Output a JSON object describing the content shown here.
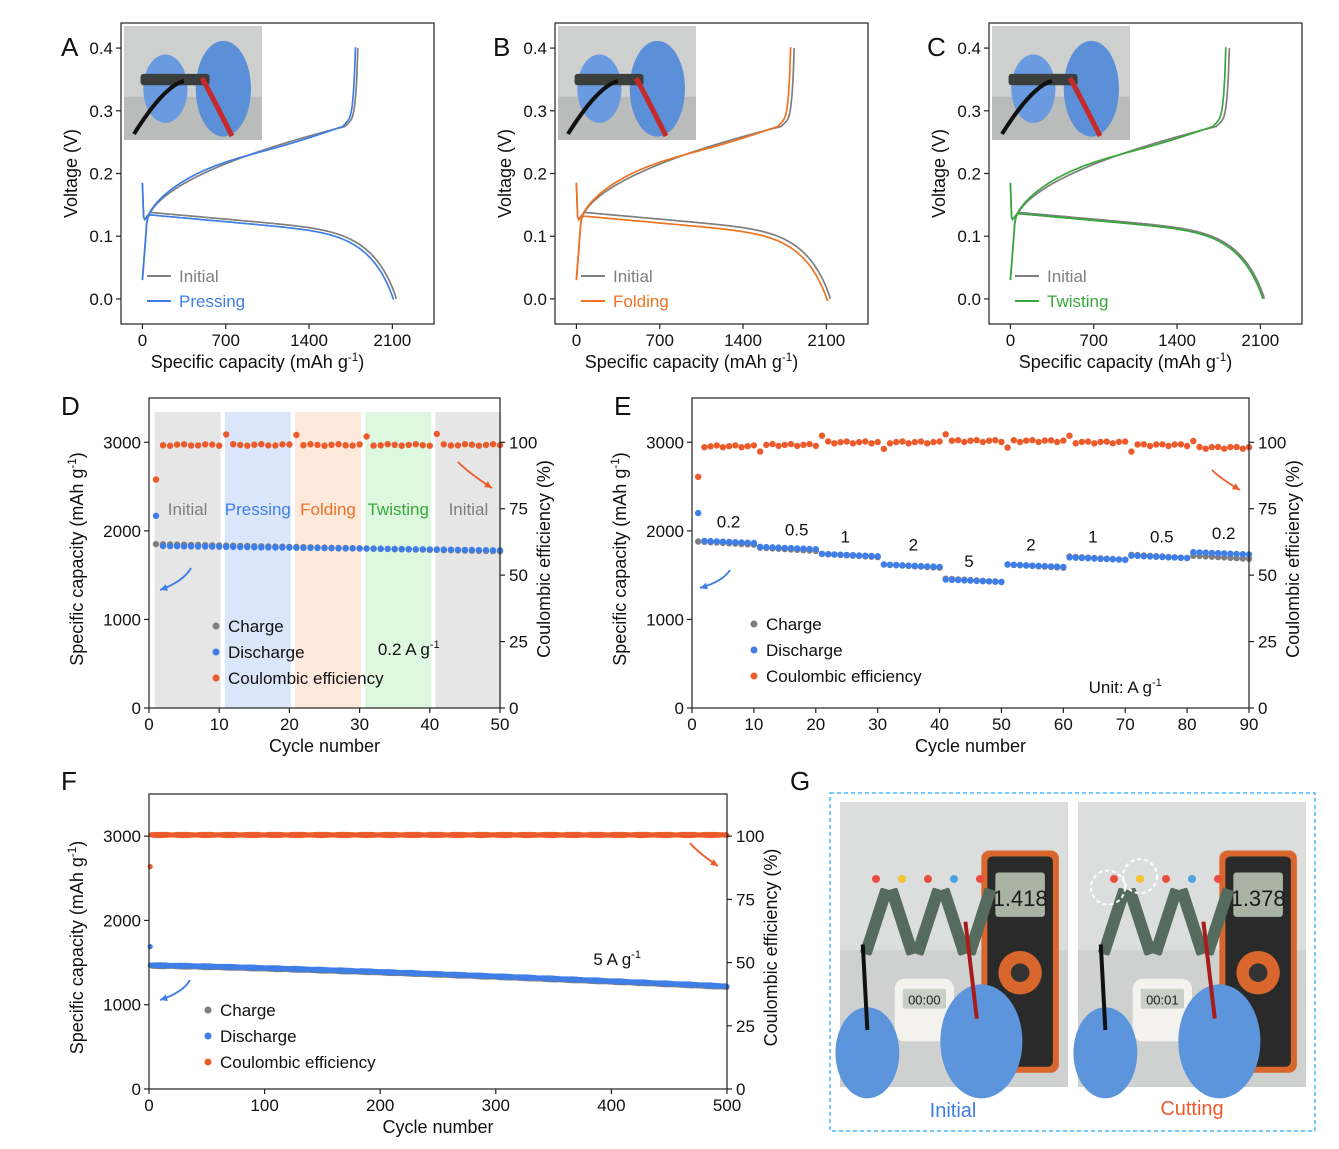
{
  "colors": {
    "gray": "#7f7f7f",
    "blue": "#3f7ee6",
    "orange": "#ec5b2c",
    "orange_line": "#ef7322",
    "green": "#38a83c",
    "band_gray": "#e6e6e6",
    "band_blue": "#dce6fa",
    "band_orange": "#fde8dc",
    "band_green": "#def7df"
  },
  "panels": {
    "A": {
      "letter": "A"
    },
    "B": {
      "letter": "B"
    },
    "C": {
      "letter": "C"
    },
    "D": {
      "letter": "D"
    },
    "E": {
      "letter": "E"
    },
    "F": {
      "letter": "F"
    },
    "G": {
      "letter": "G"
    }
  },
  "chart_data": [
    {
      "id": "A",
      "type": "line",
      "xlabel": "Specific capacity (mAh g",
      "xlabel_sup": "-1",
      "xlabel_end": ")",
      "ylabel": "Voltage (V)",
      "xlim": [
        -180,
        2450
      ],
      "ylim": [
        -0.04,
        0.44
      ],
      "xticks": [
        0,
        700,
        1400,
        2100
      ],
      "xtick_labels": [
        "0",
        "700",
        "1400",
        "2100"
      ],
      "yticks": [
        0.0,
        0.1,
        0.2,
        0.3,
        0.4
      ],
      "ytick_labels": [
        "0.0",
        "0.1",
        "0.2",
        "0.3",
        "0.4"
      ],
      "legend": [
        "Initial",
        "Pressing"
      ],
      "legend_position": "bottom-left",
      "series": [
        {
          "name": "Initial",
          "color_key": "gray",
          "end_capacity": 2130,
          "charge_end": 1810,
          "dis_level": 0.138
        },
        {
          "name": "Pressing",
          "color_key": "blue",
          "end_capacity": 2110,
          "charge_end": 1790,
          "dis_level": 0.134
        }
      ]
    },
    {
      "id": "B",
      "type": "line",
      "xlabel": "Specific capacity (mAh g",
      "xlabel_sup": "-1",
      "xlabel_end": ")",
      "ylabel": "Voltage (V)",
      "xlim": [
        -180,
        2450
      ],
      "ylim": [
        -0.04,
        0.44
      ],
      "xticks": [
        0,
        700,
        1400,
        2100
      ],
      "xtick_labels": [
        "0",
        "700",
        "1400",
        "2100"
      ],
      "yticks": [
        0.0,
        0.1,
        0.2,
        0.3,
        0.4
      ],
      "ytick_labels": [
        "0.0",
        "0.1",
        "0.2",
        "0.3",
        "0.4"
      ],
      "legend": [
        "Initial",
        "Folding"
      ],
      "legend_position": "bottom-left",
      "series": [
        {
          "name": "Initial",
          "color_key": "gray",
          "end_capacity": 2130,
          "charge_end": 1830,
          "dis_level": 0.138
        },
        {
          "name": "Folding",
          "color_key": "orange_line",
          "end_capacity": 2110,
          "charge_end": 1800,
          "dis_level": 0.132
        }
      ]
    },
    {
      "id": "C",
      "type": "line",
      "xlabel": "Specific capacity (mAh g",
      "xlabel_sup": "-1",
      "xlabel_end": ")",
      "ylabel": "Voltage (V)",
      "xlim": [
        -180,
        2450
      ],
      "ylim": [
        -0.04,
        0.44
      ],
      "xticks": [
        0,
        700,
        1400,
        2100
      ],
      "xtick_labels": [
        "0",
        "700",
        "1400",
        "2100"
      ],
      "yticks": [
        0.0,
        0.1,
        0.2,
        0.3,
        0.4
      ],
      "ytick_labels": [
        "0.0",
        "0.1",
        "0.2",
        "0.3",
        "0.4"
      ],
      "legend": [
        "Initial",
        "Twisting"
      ],
      "legend_position": "bottom-left",
      "series": [
        {
          "name": "Initial",
          "color_key": "gray",
          "end_capacity": 2130,
          "charge_end": 1840,
          "dis_level": 0.138
        },
        {
          "name": "Twisting",
          "color_key": "green",
          "end_capacity": 2120,
          "charge_end": 1810,
          "dis_level": 0.136
        }
      ]
    },
    {
      "id": "D",
      "type": "scatter",
      "xlabel": "Cycle number",
      "ylabel": "Specific capacity (mAh g",
      "ylabel_sup": "-1",
      "ylabel_end": ")",
      "y2label": "Coulombic efficiency (%)",
      "xlim": [
        0,
        50
      ],
      "ylim": [
        0,
        3500
      ],
      "y2lim": [
        0,
        116.67
      ],
      "xticks": [
        0,
        10,
        20,
        30,
        40,
        50
      ],
      "xtick_labels": [
        "0",
        "10",
        "20",
        "30",
        "40",
        "50"
      ],
      "yticks": [
        0,
        1000,
        2000,
        3000
      ],
      "ytick_labels": [
        "0",
        "1000",
        "2000",
        "3000"
      ],
      "y2ticks": [
        0,
        25,
        50,
        75,
        100
      ],
      "y2tick_labels": [
        "0",
        "25",
        "50",
        "75",
        "100"
      ],
      "regions": [
        {
          "label": "Initial",
          "x": [
            1,
            10
          ],
          "color_key": "band_gray",
          "text_key": "gray"
        },
        {
          "label": "Pressing",
          "x": [
            11,
            20
          ],
          "color_key": "band_blue",
          "text_key": "blue"
        },
        {
          "label": "Folding",
          "x": [
            21,
            30
          ],
          "color_key": "band_orange",
          "text_key": "orange_line"
        },
        {
          "label": "Twisting",
          "x": [
            31,
            40
          ],
          "color_key": "band_green",
          "text_key": "green"
        },
        {
          "label": "Initial",
          "x": [
            41,
            50
          ],
          "color_key": "band_gray",
          "text_key": "gray"
        }
      ],
      "annotation": {
        "text": "0.2 A g",
        "sup": "-1",
        "x": 37,
        "y": 600
      },
      "legend": [
        "Charge",
        "Discharge",
        "Coulombic efficiency"
      ],
      "series": [
        {
          "name": "Charge",
          "color_key": "gray",
          "axis": "left",
          "x_start": 1,
          "x_end": 50,
          "start": 1850,
          "end": 1770,
          "first": 1850
        },
        {
          "name": "Discharge",
          "color_key": "blue",
          "axis": "left",
          "x_start": 1,
          "x_end": 50,
          "start": 1830,
          "end": 1780,
          "first": 2170
        },
        {
          "name": "Coulombic efficiency",
          "color_key": "orange",
          "axis": "right",
          "x_start": 1,
          "x_end": 50,
          "start": 99,
          "end": 99,
          "first": 86,
          "spikes": {
            "11": 103,
            "21": 103,
            "31": 102,
            "41": 103
          }
        }
      ]
    },
    {
      "id": "E",
      "type": "scatter",
      "xlabel": "Cycle number",
      "ylabel": "Specific capacity (mAh g",
      "ylabel_sup": "-1",
      "ylabel_end": ")",
      "y2label": "Coulombic efficiency (%)",
      "xlim": [
        0,
        90
      ],
      "ylim": [
        0,
        3500
      ],
      "y2lim": [
        0,
        116.67
      ],
      "xticks": [
        0,
        10,
        20,
        30,
        40,
        50,
        60,
        70,
        80,
        90
      ],
      "xtick_labels": [
        "0",
        "10",
        "20",
        "30",
        "40",
        "50",
        "60",
        "70",
        "80",
        "90"
      ],
      "yticks": [
        0,
        1000,
        2000,
        3000
      ],
      "ytick_labels": [
        "0",
        "1000",
        "2000",
        "3000"
      ],
      "y2ticks": [
        0,
        25,
        50,
        75,
        100
      ],
      "y2tick_labels": [
        "0",
        "25",
        "50",
        "75",
        "100"
      ],
      "rate_steps": [
        {
          "rate": "0.2",
          "x": [
            1,
            10
          ],
          "charge": 1880,
          "discharge": 1890,
          "ce": 98.5,
          "label_x": 4,
          "label_y": 2040
        },
        {
          "rate": "0.5",
          "x": [
            11,
            20
          ],
          "charge": 1810,
          "discharge": 1820,
          "ce": 99,
          "label_x": 15,
          "label_y": 1950
        },
        {
          "rate": "1",
          "x": [
            21,
            30
          ],
          "charge": 1740,
          "discharge": 1740,
          "ce": 100,
          "label_x": 24,
          "label_y": 1870
        },
        {
          "rate": "2",
          "x": [
            31,
            40
          ],
          "charge": 1620,
          "discharge": 1620,
          "ce": 100,
          "label_x": 35,
          "label_y": 1780
        },
        {
          "rate": "5",
          "x": [
            41,
            50
          ],
          "charge": 1460,
          "discharge": 1450,
          "ce": 100.5,
          "label_x": 44,
          "label_y": 1590
        },
        {
          "rate": "2",
          "x": [
            51,
            60
          ],
          "charge": 1620,
          "discharge": 1620,
          "ce": 100.5,
          "label_x": 54,
          "label_y": 1780
        },
        {
          "rate": "1",
          "x": [
            61,
            70
          ],
          "charge": 1710,
          "discharge": 1700,
          "ce": 100,
          "label_x": 64,
          "label_y": 1870
        },
        {
          "rate": "0.5",
          "x": [
            71,
            80
          ],
          "charge": 1730,
          "discharge": 1720,
          "ce": 99,
          "label_x": 74,
          "label_y": 1870
        },
        {
          "rate": "0.2",
          "x": [
            81,
            90
          ],
          "charge": 1720,
          "discharge": 1760,
          "ce": 98,
          "label_x": 84,
          "label_y": 1910
        }
      ],
      "first_points": {
        "charge": 1880,
        "discharge": 2200,
        "ce": 87
      },
      "annotation": {
        "text": "Unit: A g",
        "sup": "-1",
        "x": 70,
        "y": 170
      },
      "legend": [
        "Charge",
        "Discharge",
        "Coulombic efficiency"
      ]
    },
    {
      "id": "F",
      "type": "scatter",
      "xlabel": "Cycle number",
      "ylabel": "Specific capacity (mAh g",
      "ylabel_sup": "-1",
      "ylabel_end": ")",
      "y2label": "Coulombic efficiency (%)",
      "xlim": [
        0,
        500
      ],
      "ylim": [
        0,
        3500
      ],
      "y2lim": [
        0,
        116.67
      ],
      "xticks": [
        0,
        100,
        200,
        300,
        400,
        500
      ],
      "xtick_labels": [
        "0",
        "100",
        "200",
        "300",
        "400",
        "500"
      ],
      "yticks": [
        0,
        1000,
        2000,
        3000
      ],
      "ytick_labels": [
        "0",
        "1000",
        "2000",
        "3000"
      ],
      "y2ticks": [
        0,
        25,
        50,
        75,
        100
      ],
      "y2tick_labels": [
        "0",
        "25",
        "50",
        "75",
        "100"
      ],
      "annotation": {
        "text": "5 A g",
        "sup": "-1",
        "x": 405,
        "y": 1470
      },
      "legend": [
        "Charge",
        "Discharge",
        "Coulombic efficiency"
      ],
      "series": [
        {
          "name": "Charge",
          "color_key": "gray",
          "axis": "left",
          "start": 1460,
          "end": 1210,
          "first": 1470
        },
        {
          "name": "Discharge",
          "color_key": "blue",
          "axis": "left",
          "start": 1470,
          "end": 1220,
          "first": 1690
        },
        {
          "name": "Coulombic efficiency",
          "color_key": "orange",
          "axis": "right",
          "start": 100.5,
          "end": 100.5,
          "first": 88
        }
      ]
    }
  ],
  "photos": {
    "G_initial_label": "Initial",
    "G_cutting_label": "Cutting",
    "initial_reading": "1.418",
    "cutting_reading": "1.378",
    "timer_initial": "00:00",
    "timer_cutting": "00:01"
  }
}
